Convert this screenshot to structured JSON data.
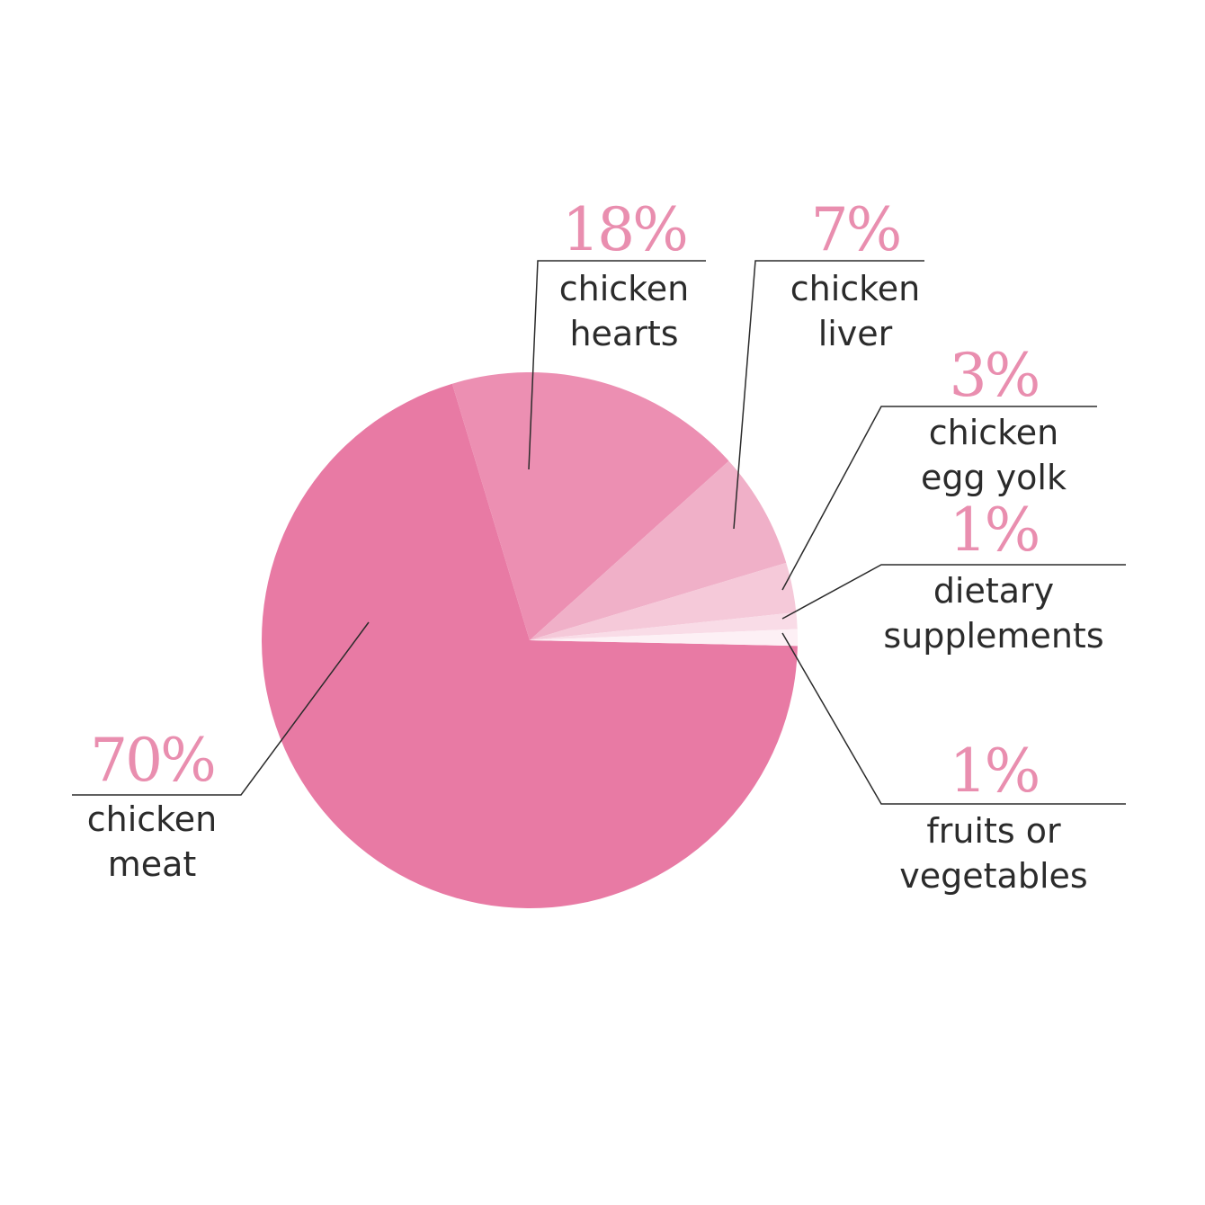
{
  "chart_data": {
    "type": "pie",
    "title": "",
    "slices": [
      {
        "value": 70,
        "value_label": "70%",
        "label_lines": [
          "chicken",
          "meat"
        ],
        "color": "#e87aa4"
      },
      {
        "value": 18,
        "value_label": "18%",
        "label_lines": [
          "chicken",
          "hearts"
        ],
        "color": "#ec8fb2"
      },
      {
        "value": 7,
        "value_label": "7%",
        "label_lines": [
          "chicken",
          "liver"
        ],
        "color": "#f0b0c8"
      },
      {
        "value": 3,
        "value_label": "3%",
        "label_lines": [
          "chicken",
          "egg yolk"
        ],
        "color": "#f5c9d9"
      },
      {
        "value": 1,
        "value_label": "1%",
        "label_lines": [
          "dietary",
          "supplements"
        ],
        "color": "#f9dce7"
      },
      {
        "value": 1,
        "value_label": "1%",
        "label_lines": [
          "fruits or",
          "vegetables"
        ],
        "color": "#fdf0f5"
      }
    ]
  }
}
